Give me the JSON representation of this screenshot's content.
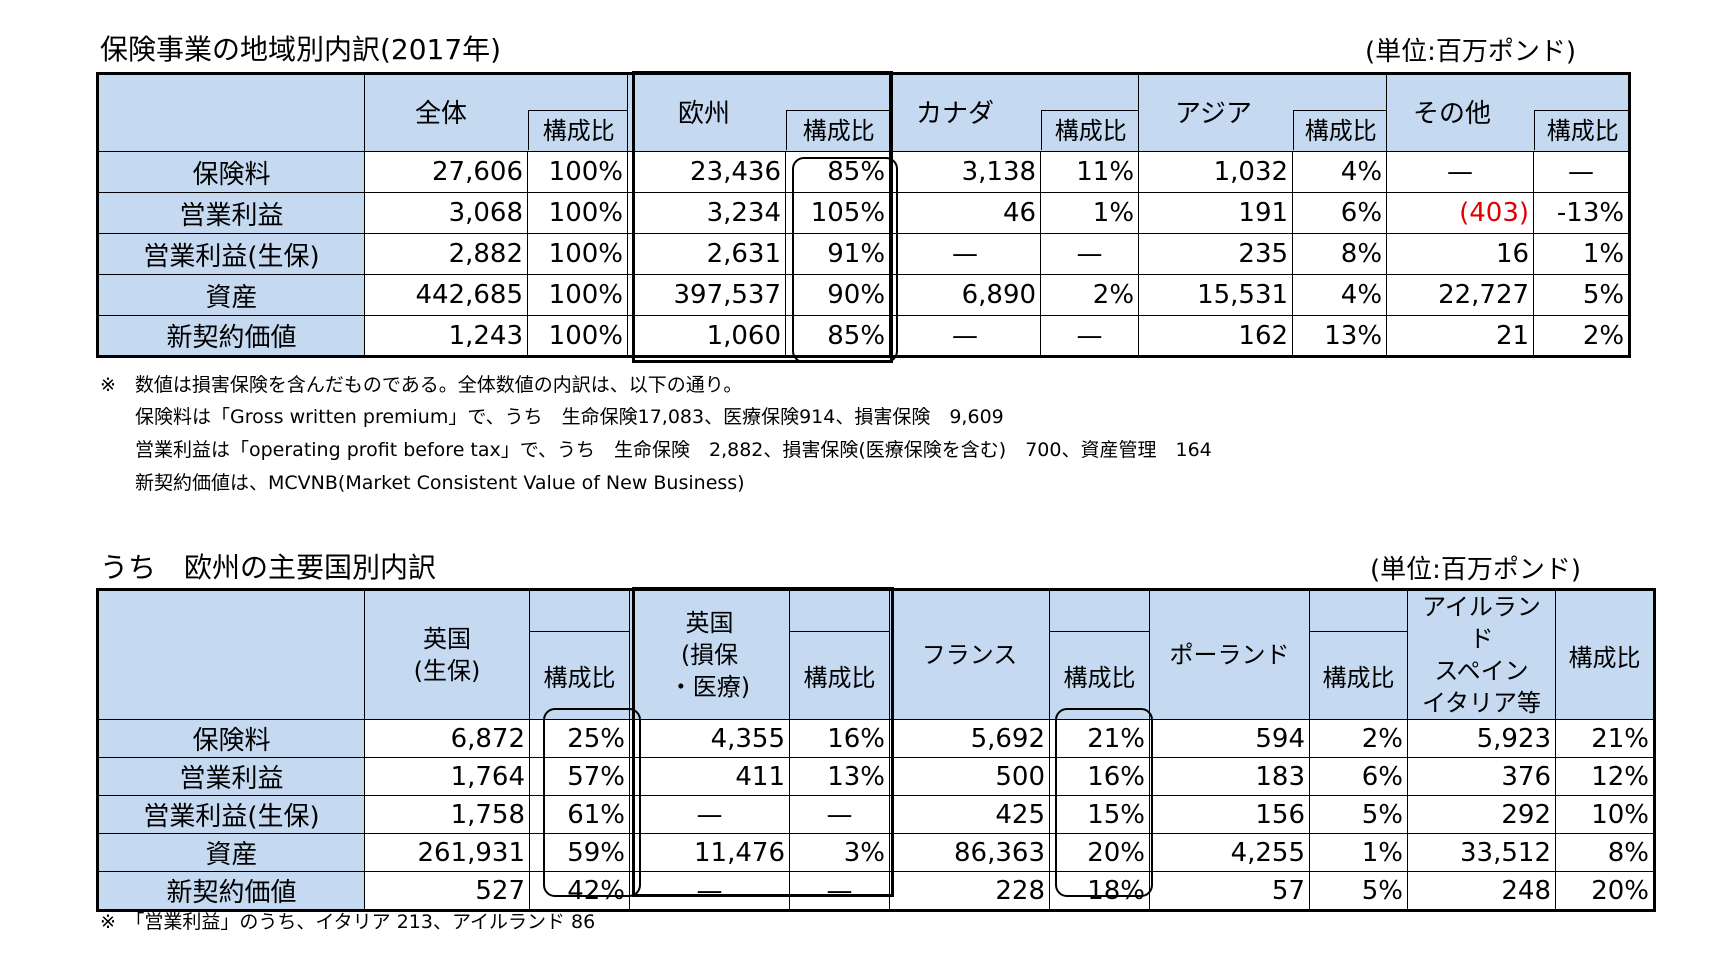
{
  "table1": {
    "title": "保険事業の地域別内訳(2017年)",
    "unit": "(単位:百万ポンド)",
    "headers": [
      "全体",
      "構成比",
      "欧州",
      "構成比",
      "カナダ",
      "構成比",
      "アジア",
      "構成比",
      "その他",
      "構成比"
    ],
    "rows": [
      {
        "label": "保険料",
        "cells": [
          "27,606",
          "100%",
          "23,436",
          "85%",
          "3,138",
          "11%",
          "1,032",
          "4%",
          "—",
          "—"
        ]
      },
      {
        "label": "営業利益",
        "cells": [
          "3,068",
          "100%",
          "3,234",
          "105%",
          "46",
          "1%",
          "191",
          "6%",
          "(403)",
          "-13%"
        ]
      },
      {
        "label": "営業利益(生保)",
        "cells": [
          "2,882",
          "100%",
          "2,631",
          "91%",
          "—",
          "—",
          "235",
          "8%",
          "16",
          "1%"
        ]
      },
      {
        "label": "資産",
        "cells": [
          "442,685",
          "100%",
          "397,537",
          "90%",
          "6,890",
          "2%",
          "15,531",
          "4%",
          "22,727",
          "5%"
        ]
      },
      {
        "label": "新契約価値",
        "cells": [
          "1,243",
          "100%",
          "1,060",
          "85%",
          "—",
          "—",
          "162",
          "13%",
          "21",
          "2%"
        ]
      }
    ],
    "notes": [
      "※　数値は損害保険を含んだものである。全体数値の内訳は、以下の通り。",
      "保険料は「Gross written premium」で、うち　生命保険17,083、医療保険914、損害保険　9,609",
      "営業利益は「operating profit before tax」で、うち　生命保険　2,882、損害保険(医療保険を含む)　700、資産管理　164",
      "新契約価値は、MCVNB(Market Consistent Value of New Business)"
    ]
  },
  "table2": {
    "title": "うち　欧州の主要国別内訳",
    "unit": "(単位:百万ポンド)",
    "headers": [
      "英国\n(生保)",
      "構成比",
      "英国\n(損保\n・医療)",
      "構成比",
      "フランス",
      "構成比",
      "ポーランド",
      "構成比",
      "アイルランド\nスペイン\nイタリア等",
      "構成比"
    ],
    "rows": [
      {
        "label": "保険料",
        "cells": [
          "6,872",
          "25%",
          "4,355",
          "16%",
          "5,692",
          "21%",
          "594",
          "2%",
          "5,923",
          "21%"
        ]
      },
      {
        "label": "営業利益",
        "cells": [
          "1,764",
          "57%",
          "411",
          "13%",
          "500",
          "16%",
          "183",
          "6%",
          "376",
          "12%"
        ]
      },
      {
        "label": "営業利益(生保)",
        "cells": [
          "1,758",
          "61%",
          "—",
          "—",
          "425",
          "15%",
          "156",
          "5%",
          "292",
          "10%"
        ]
      },
      {
        "label": "資産",
        "cells": [
          "261,931",
          "59%",
          "11,476",
          "3%",
          "86,363",
          "20%",
          "4,255",
          "1%",
          "33,512",
          "8%"
        ]
      },
      {
        "label": "新契約価値",
        "cells": [
          "527",
          "42%",
          "—",
          "—",
          "228",
          "18%",
          "57",
          "5%",
          "248",
          "20%"
        ]
      }
    ],
    "notes": [
      "※　「営業利益」のうち、イタリア 213、アイルランド 86"
    ]
  },
  "colors": {
    "header_bg": "#c5d9f1",
    "negative": "#e00000"
  }
}
